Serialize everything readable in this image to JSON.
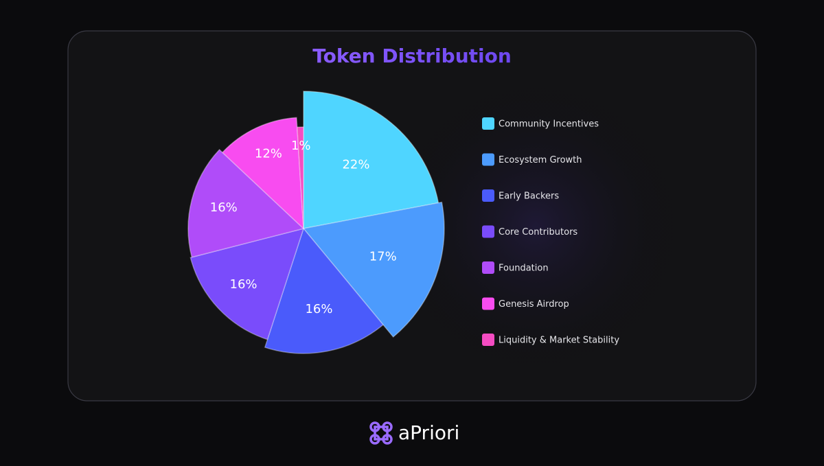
{
  "chart_data": {
    "type": "pie",
    "title": "Token Distribution",
    "categories": [
      "Community Incentives",
      "Ecosystem Growth",
      "Early Backers",
      "Core Contributors",
      "Foundation",
      "Genesis Airdrop",
      "Liquidity & Market Stability"
    ],
    "values": [
      22,
      17,
      16,
      16,
      16,
      12,
      1
    ],
    "value_labels": [
      "22%",
      "17%",
      "16%",
      "16%",
      "16%",
      "12%",
      "1%"
    ],
    "colors": [
      "#4fd5ff",
      "#4c9bfd",
      "#4a5bfb",
      "#7a4cfb",
      "#b04cf9",
      "#f84cf0",
      "#f54cc2"
    ],
    "legend": "right"
  },
  "brand": "aPriori"
}
